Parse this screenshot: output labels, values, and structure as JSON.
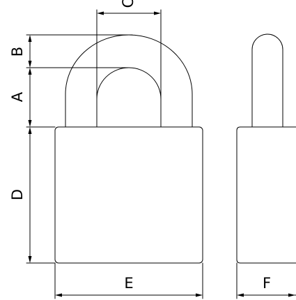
{
  "drawing": {
    "type": "technical-drawing",
    "subject": "padlock",
    "views": [
      "front",
      "side"
    ],
    "line_color": "#000000",
    "background_color": "#ffffff"
  },
  "dimensions": {
    "A": "A",
    "B": "B",
    "C": "C",
    "D": "D",
    "E": "E",
    "F": "F"
  }
}
